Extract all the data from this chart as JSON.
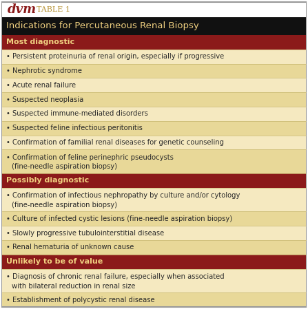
{
  "title_dvm": "dvm",
  "title_table": "TABLE 1",
  "header": "Indications for Percutaneous Renal Biopsy",
  "sections": [
    {
      "label": "Most diagnostic",
      "bg": "#8b1a1a",
      "text_color": "#f0d080",
      "items": []
    },
    {
      "label": null,
      "items": [
        {
          "text": "Persistent proteinuria of renal origin, especially if progressive",
          "lines": 1
        },
        {
          "text": "Nephrotic syndrome",
          "lines": 1
        },
        {
          "text": "Acute renal failure",
          "lines": 1
        },
        {
          "text": "Suspected neoplasia",
          "lines": 1
        },
        {
          "text": "Suspected immune-mediated disorders",
          "lines": 1
        },
        {
          "text": "Suspected feline infectious peritonitis",
          "lines": 1
        },
        {
          "text": "Confirmation of familial renal diseases for genetic counseling",
          "lines": 1
        },
        {
          "text": "Confirmation of feline perinephric pseudocysts\n(fine-needle aspiration biopsy)",
          "lines": 2
        }
      ]
    },
    {
      "label": "Possibly diagnostic",
      "bg": "#8b1a1a",
      "text_color": "#f0d080",
      "items": []
    },
    {
      "label": null,
      "items": [
        {
          "text": "Confirmation of infectious nephropathy by culture and/or cytology\n(fine-needle aspiration biopsy)",
          "lines": 2
        },
        {
          "text": "Culture of infected cystic lesions (fine-needle aspiration biopsy)",
          "lines": 1
        },
        {
          "text": "Slowly progressive tubulointerstitial disease",
          "lines": 1
        },
        {
          "text": "Renal hematuria of unknown cause",
          "lines": 1
        }
      ]
    },
    {
      "label": "Unlikely to be of value",
      "bg": "#8b1a1a",
      "text_color": "#f0d080",
      "items": []
    },
    {
      "label": null,
      "items": [
        {
          "text": "Diagnosis of chronic renal failure, especially when associated\nwith bilateral reduction in renal size",
          "lines": 2
        },
        {
          "text": "Establishment of polycystic renal disease",
          "lines": 1
        }
      ]
    }
  ],
  "bg_header": "#111111",
  "header_text_color": "#f0d080",
  "dvm_color": "#8b1a1a",
  "table1_color": "#b8963c",
  "border_color": "#999999",
  "row_color_odd": "#f5e9c0",
  "row_color_even": "#e8d898",
  "divider_color": "#c8b870",
  "figsize": [
    4.47,
    4.49
  ],
  "dpi": 100
}
